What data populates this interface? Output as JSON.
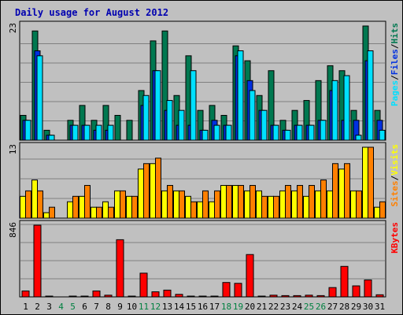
{
  "chart_data": {
    "type": "bar",
    "title": "Daily usage for August 2012",
    "categories": [
      "1",
      "2",
      "3",
      "4",
      "5",
      "6",
      "7",
      "8",
      "9",
      "10",
      "11",
      "12",
      "13",
      "14",
      "15",
      "16",
      "17",
      "18",
      "19",
      "20",
      "21",
      "22",
      "23",
      "24",
      "25",
      "26",
      "27",
      "28",
      "29",
      "30",
      "31"
    ],
    "weekend_days": [
      "4",
      "5",
      "11",
      "12",
      "18",
      "19",
      "25",
      "26"
    ],
    "colors": {
      "background": "#c0c0c0",
      "hits": "#007850",
      "files": "#0030e0",
      "pages": "#00e0ff",
      "visits": "#ffff00",
      "sites": "#ff8000",
      "kbytes": "#ff0000",
      "title": "#0000b0",
      "weekday_label": "#000000",
      "weekend_label": "#008040"
    },
    "panels": [
      {
        "id": "hits-files-pages",
        "ymax_label": "23",
        "ylim": [
          0,
          23
        ],
        "legend": [
          {
            "label": "Pages",
            "color": "#00e0ff"
          },
          {
            "sep": "/"
          },
          {
            "label": "Files",
            "color": "#0030e0"
          },
          {
            "sep": "/"
          },
          {
            "label": "Hits",
            "color": "#007850"
          }
        ],
        "series": [
          {
            "name": "Hits",
            "color": "#007850",
            "values": [
              5,
              22,
              2,
              0,
              4,
              7,
              4,
              7,
              5,
              4,
              10,
              20,
              22,
              9,
              17,
              6,
              7,
              5,
              19,
              16,
              9,
              14,
              4,
              6,
              8,
              12,
              15,
              14,
              6,
              23,
              6
            ]
          },
          {
            "name": "Files",
            "color": "#0030e0",
            "values": [
              4,
              18,
              1,
              0,
              3,
              3,
              2,
              2,
              0,
              0,
              7,
              14,
              6,
              3,
              3,
              2,
              4,
              3,
              17,
              12,
              6,
              3,
              2,
              3,
              3,
              4,
              10,
              4,
              4,
              16,
              4
            ]
          },
          {
            "name": "Pages",
            "color": "#00e0ff",
            "values": [
              4,
              17,
              1,
              0,
              3,
              3,
              3,
              3,
              0,
              0,
              9,
              14,
              8,
              6,
              14,
              2,
              3,
              3,
              18,
              10,
              6,
              3,
              2,
              3,
              3,
              4,
              12,
              13,
              1,
              18,
              2
            ]
          }
        ]
      },
      {
        "id": "visits-sites",
        "ymax_label": "13",
        "ylim": [
          0,
          13
        ],
        "legend": [
          {
            "label": "Sites",
            "color": "#ff8000"
          },
          {
            "sep": "/"
          },
          {
            "label": "Visits",
            "color": "#ffff00"
          }
        ],
        "series": [
          {
            "name": "Visits",
            "color": "#ffff00",
            "values": [
              4,
              7,
              1,
              0,
              3,
              4,
              2,
              3,
              5,
              4,
              9,
              10,
              5,
              5,
              4,
              3,
              3,
              6,
              6,
              5,
              5,
              4,
              5,
              5,
              4,
              5,
              5,
              9,
              5,
              13,
              2
            ]
          },
          {
            "name": "Sites",
            "color": "#ff8000",
            "values": [
              5,
              5,
              2,
              0,
              4,
              6,
              2,
              2,
              5,
              4,
              10,
              11,
              6,
              5,
              3,
              5,
              5,
              6,
              6,
              6,
              4,
              4,
              6,
              6,
              6,
              7,
              10,
              10,
              5,
              13,
              3
            ]
          }
        ]
      },
      {
        "id": "kbytes",
        "ymax_label": "846",
        "ylim": [
          0,
          846
        ],
        "legend": [
          {
            "label": "KBytes",
            "color": "#ff0000"
          }
        ],
        "series": [
          {
            "name": "KBytes",
            "color": "#ff0000",
            "values": [
              70,
              846,
              5,
              0,
              5,
              5,
              70,
              20,
              675,
              5,
              280,
              60,
              80,
              30,
              5,
              5,
              5,
              170,
              160,
              500,
              5,
              20,
              15,
              15,
              20,
              15,
              110,
              360,
              130,
              200,
              25
            ]
          }
        ]
      }
    ]
  }
}
